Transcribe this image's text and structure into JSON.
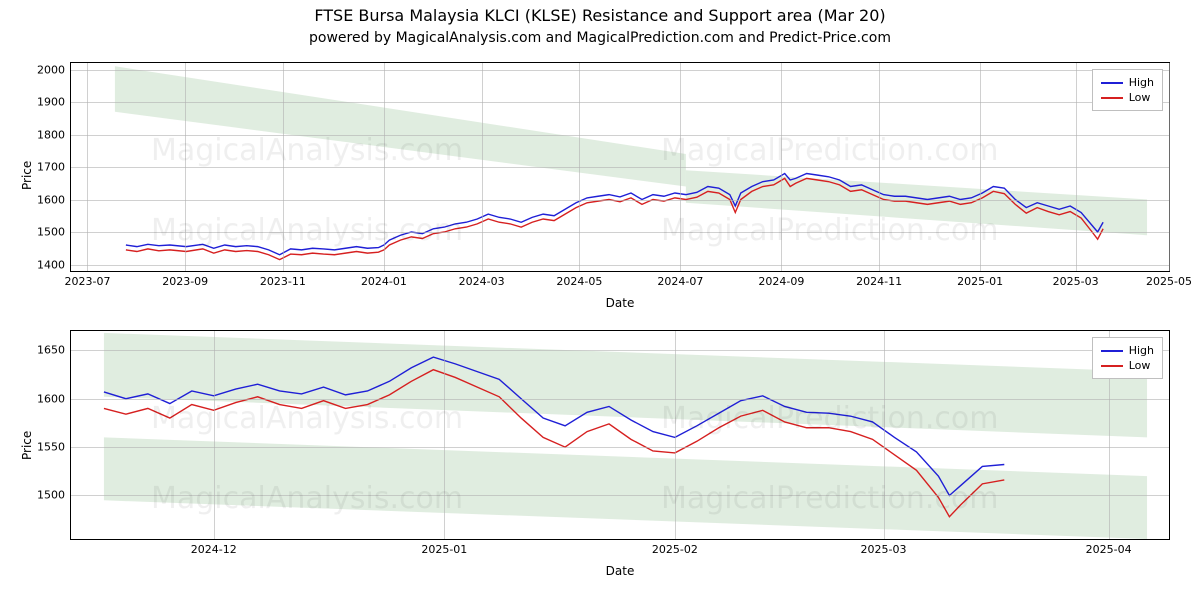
{
  "title": "FTSE Bursa Malaysia KLCI (KLSE) Resistance and Support area (Mar 20)",
  "subtitle": "powered by MagicalAnalysis.com and MagicalPrediction.com and Predict-Price.com",
  "axis_labels": {
    "x": "Date",
    "y": "Price"
  },
  "legend": {
    "high": "High",
    "low": "Low"
  },
  "colors": {
    "high_line": "#1f1fd6",
    "low_line": "#d62020",
    "band_fill": "#c7dfc7",
    "band_opacity": 0.55,
    "grid": "#b0b0b0",
    "background": "#ffffff",
    "text": "#000000",
    "spine": "#000000",
    "watermark": "#000000",
    "watermark_opacity": 0.06
  },
  "typography": {
    "title_fontsize": 16,
    "subtitle_fontsize": 14,
    "axis_label_fontsize": 12,
    "tick_fontsize": 11,
    "legend_fontsize": 11,
    "watermark_fontsize": 30
  },
  "line_width": 1.4,
  "watermarks": [
    "MagicalAnalysis.com",
    "MagicalPrediction.com"
  ],
  "top_chart": {
    "type": "line",
    "ylim": [
      1380,
      2020
    ],
    "yticks": [
      1400,
      1500,
      1600,
      1700,
      1800,
      1900,
      2000
    ],
    "xlim": [
      "2023-07",
      "2025-05"
    ],
    "xticks": [
      "2023-07",
      "2023-09",
      "2023-11",
      "2024-01",
      "2024-03",
      "2024-05",
      "2024-07",
      "2024-09",
      "2024-11",
      "2025-01",
      "2025-03",
      "2025-05"
    ],
    "xtick_positions_pct": [
      1.5,
      10.4,
      19.3,
      28.5,
      37.4,
      46.3,
      55.5,
      64.7,
      73.6,
      82.8,
      91.5,
      100.0
    ],
    "bands": [
      {
        "x0_pct": 4,
        "x1_pct": 56,
        "y_top0": 2010,
        "y_top1": 1740,
        "y_bot0": 1870,
        "y_bot1": 1640
      },
      {
        "x0_pct": 56,
        "x1_pct": 98,
        "y_top0": 1690,
        "y_top1": 1600,
        "y_bot0": 1590,
        "y_bot1": 1490
      }
    ],
    "series_high": [
      [
        5,
        1460
      ],
      [
        6,
        1455
      ],
      [
        7,
        1462
      ],
      [
        8,
        1458
      ],
      [
        9,
        1460
      ],
      [
        10.5,
        1455
      ],
      [
        12,
        1462
      ],
      [
        13,
        1450
      ],
      [
        14,
        1460
      ],
      [
        15,
        1455
      ],
      [
        16,
        1458
      ],
      [
        17,
        1455
      ],
      [
        18,
        1445
      ],
      [
        19,
        1430
      ],
      [
        20,
        1448
      ],
      [
        21,
        1445
      ],
      [
        22,
        1450
      ],
      [
        23,
        1448
      ],
      [
        24,
        1445
      ],
      [
        25,
        1450
      ],
      [
        26,
        1455
      ],
      [
        27,
        1450
      ],
      [
        28,
        1452
      ],
      [
        28.5,
        1460
      ],
      [
        29,
        1475
      ],
      [
        30,
        1490
      ],
      [
        31,
        1500
      ],
      [
        32,
        1495
      ],
      [
        33,
        1510
      ],
      [
        34,
        1515
      ],
      [
        35,
        1525
      ],
      [
        36,
        1530
      ],
      [
        37,
        1540
      ],
      [
        38,
        1555
      ],
      [
        39,
        1545
      ],
      [
        40,
        1540
      ],
      [
        41,
        1530
      ],
      [
        42,
        1545
      ],
      [
        43,
        1555
      ],
      [
        44,
        1550
      ],
      [
        45,
        1570
      ],
      [
        46,
        1590
      ],
      [
        47,
        1605
      ],
      [
        48,
        1610
      ],
      [
        49,
        1615
      ],
      [
        50,
        1608
      ],
      [
        51,
        1620
      ],
      [
        52,
        1600
      ],
      [
        53,
        1615
      ],
      [
        54,
        1610
      ],
      [
        55,
        1620
      ],
      [
        56,
        1615
      ],
      [
        57,
        1622
      ],
      [
        58,
        1640
      ],
      [
        59,
        1635
      ],
      [
        60,
        1615
      ],
      [
        60.5,
        1580
      ],
      [
        61,
        1620
      ],
      [
        62,
        1640
      ],
      [
        63,
        1655
      ],
      [
        64,
        1660
      ],
      [
        65,
        1680
      ],
      [
        65.5,
        1660
      ],
      [
        66,
        1665
      ],
      [
        67,
        1680
      ],
      [
        68,
        1675
      ],
      [
        69,
        1670
      ],
      [
        70,
        1660
      ],
      [
        71,
        1640
      ],
      [
        72,
        1645
      ],
      [
        73,
        1630
      ],
      [
        74,
        1615
      ],
      [
        75,
        1610
      ],
      [
        76,
        1610
      ],
      [
        77,
        1605
      ],
      [
        78,
        1600
      ],
      [
        79,
        1605
      ],
      [
        80,
        1610
      ],
      [
        81,
        1600
      ],
      [
        82,
        1605
      ],
      [
        83,
        1620
      ],
      [
        84,
        1640
      ],
      [
        85,
        1635
      ],
      [
        86,
        1600
      ],
      [
        87,
        1575
      ],
      [
        88,
        1590
      ],
      [
        89,
        1580
      ],
      [
        90,
        1570
      ],
      [
        91,
        1580
      ],
      [
        92,
        1560
      ],
      [
        93,
        1520
      ],
      [
        93.5,
        1500
      ],
      [
        94,
        1530
      ]
    ],
    "series_low": [
      [
        5,
        1445
      ],
      [
        6,
        1440
      ],
      [
        7,
        1448
      ],
      [
        8,
        1442
      ],
      [
        9,
        1445
      ],
      [
        10.5,
        1440
      ],
      [
        12,
        1448
      ],
      [
        13,
        1435
      ],
      [
        14,
        1445
      ],
      [
        15,
        1440
      ],
      [
        16,
        1443
      ],
      [
        17,
        1440
      ],
      [
        18,
        1430
      ],
      [
        19,
        1415
      ],
      [
        20,
        1432
      ],
      [
        21,
        1430
      ],
      [
        22,
        1435
      ],
      [
        23,
        1432
      ],
      [
        24,
        1430
      ],
      [
        25,
        1435
      ],
      [
        26,
        1440
      ],
      [
        27,
        1435
      ],
      [
        28,
        1438
      ],
      [
        28.5,
        1445
      ],
      [
        29,
        1460
      ],
      [
        30,
        1475
      ],
      [
        31,
        1485
      ],
      [
        32,
        1480
      ],
      [
        33,
        1495
      ],
      [
        34,
        1500
      ],
      [
        35,
        1510
      ],
      [
        36,
        1515
      ],
      [
        37,
        1525
      ],
      [
        38,
        1540
      ],
      [
        39,
        1530
      ],
      [
        40,
        1525
      ],
      [
        41,
        1515
      ],
      [
        42,
        1530
      ],
      [
        43,
        1540
      ],
      [
        44,
        1535
      ],
      [
        45,
        1555
      ],
      [
        46,
        1575
      ],
      [
        47,
        1590
      ],
      [
        48,
        1595
      ],
      [
        49,
        1600
      ],
      [
        50,
        1593
      ],
      [
        51,
        1605
      ],
      [
        52,
        1585
      ],
      [
        53,
        1600
      ],
      [
        54,
        1595
      ],
      [
        55,
        1605
      ],
      [
        56,
        1600
      ],
      [
        57,
        1607
      ],
      [
        58,
        1625
      ],
      [
        59,
        1620
      ],
      [
        60,
        1600
      ],
      [
        60.5,
        1560
      ],
      [
        61,
        1600
      ],
      [
        62,
        1625
      ],
      [
        63,
        1640
      ],
      [
        64,
        1645
      ],
      [
        65,
        1665
      ],
      [
        65.5,
        1640
      ],
      [
        66,
        1650
      ],
      [
        67,
        1665
      ],
      [
        68,
        1660
      ],
      [
        69,
        1655
      ],
      [
        70,
        1645
      ],
      [
        71,
        1625
      ],
      [
        72,
        1630
      ],
      [
        73,
        1615
      ],
      [
        74,
        1600
      ],
      [
        75,
        1595
      ],
      [
        76,
        1595
      ],
      [
        77,
        1590
      ],
      [
        78,
        1585
      ],
      [
        79,
        1590
      ],
      [
        80,
        1595
      ],
      [
        81,
        1585
      ],
      [
        82,
        1590
      ],
      [
        83,
        1605
      ],
      [
        84,
        1625
      ],
      [
        85,
        1618
      ],
      [
        86,
        1585
      ],
      [
        87,
        1558
      ],
      [
        88,
        1575
      ],
      [
        89,
        1563
      ],
      [
        90,
        1553
      ],
      [
        91,
        1563
      ],
      [
        92,
        1543
      ],
      [
        93,
        1500
      ],
      [
        93.5,
        1478
      ],
      [
        94,
        1510
      ]
    ]
  },
  "bottom_chart": {
    "type": "line",
    "ylim": [
      1455,
      1670
    ],
    "yticks": [
      1500,
      1550,
      1600,
      1650
    ],
    "xlim": [
      "2024-11-10",
      "2025-04-10"
    ],
    "xticks": [
      "2024-12",
      "2025-01",
      "2025-02",
      "2025-03",
      "2025-04"
    ],
    "xtick_positions_pct": [
      13,
      34,
      55,
      74,
      94.5
    ],
    "bands": [
      {
        "x0_pct": 3,
        "x1_pct": 98,
        "y_top0": 1668,
        "y_top1": 1628,
        "y_bot0": 1602,
        "y_bot1": 1560
      },
      {
        "x0_pct": 3,
        "x1_pct": 98,
        "y_top0": 1560,
        "y_top1": 1520,
        "y_bot0": 1495,
        "y_bot1": 1455
      }
    ],
    "series_high": [
      [
        3,
        1607
      ],
      [
        5,
        1600
      ],
      [
        7,
        1605
      ],
      [
        9,
        1595
      ],
      [
        11,
        1608
      ],
      [
        13,
        1603
      ],
      [
        15,
        1610
      ],
      [
        17,
        1615
      ],
      [
        19,
        1608
      ],
      [
        21,
        1605
      ],
      [
        23,
        1612
      ],
      [
        25,
        1604
      ],
      [
        27,
        1608
      ],
      [
        29,
        1618
      ],
      [
        31,
        1632
      ],
      [
        33,
        1643
      ],
      [
        35,
        1636
      ],
      [
        37,
        1628
      ],
      [
        39,
        1620
      ],
      [
        41,
        1600
      ],
      [
        43,
        1580
      ],
      [
        45,
        1572
      ],
      [
        47,
        1586
      ],
      [
        49,
        1592
      ],
      [
        51,
        1578
      ],
      [
        53,
        1566
      ],
      [
        55,
        1560
      ],
      [
        57,
        1572
      ],
      [
        59,
        1585
      ],
      [
        61,
        1598
      ],
      [
        63,
        1603
      ],
      [
        65,
        1592
      ],
      [
        67,
        1586
      ],
      [
        69,
        1585
      ],
      [
        71,
        1582
      ],
      [
        73,
        1576
      ],
      [
        75,
        1560
      ],
      [
        77,
        1545
      ],
      [
        79,
        1520
      ],
      [
        80,
        1500
      ],
      [
        81,
        1510
      ],
      [
        83,
        1530
      ],
      [
        85,
        1532
      ]
    ],
    "series_low": [
      [
        3,
        1590
      ],
      [
        5,
        1584
      ],
      [
        7,
        1590
      ],
      [
        9,
        1580
      ],
      [
        11,
        1594
      ],
      [
        13,
        1588
      ],
      [
        15,
        1596
      ],
      [
        17,
        1602
      ],
      [
        19,
        1594
      ],
      [
        21,
        1590
      ],
      [
        23,
        1598
      ],
      [
        25,
        1590
      ],
      [
        27,
        1594
      ],
      [
        29,
        1604
      ],
      [
        31,
        1618
      ],
      [
        33,
        1630
      ],
      [
        35,
        1622
      ],
      [
        37,
        1612
      ],
      [
        39,
        1602
      ],
      [
        41,
        1580
      ],
      [
        43,
        1560
      ],
      [
        45,
        1550
      ],
      [
        47,
        1566
      ],
      [
        49,
        1574
      ],
      [
        51,
        1558
      ],
      [
        53,
        1546
      ],
      [
        55,
        1544
      ],
      [
        57,
        1556
      ],
      [
        59,
        1570
      ],
      [
        61,
        1582
      ],
      [
        63,
        1588
      ],
      [
        65,
        1576
      ],
      [
        67,
        1570
      ],
      [
        69,
        1570
      ],
      [
        71,
        1566
      ],
      [
        73,
        1558
      ],
      [
        75,
        1542
      ],
      [
        77,
        1526
      ],
      [
        79,
        1498
      ],
      [
        80,
        1478
      ],
      [
        81,
        1490
      ],
      [
        83,
        1512
      ],
      [
        85,
        1516
      ]
    ]
  }
}
